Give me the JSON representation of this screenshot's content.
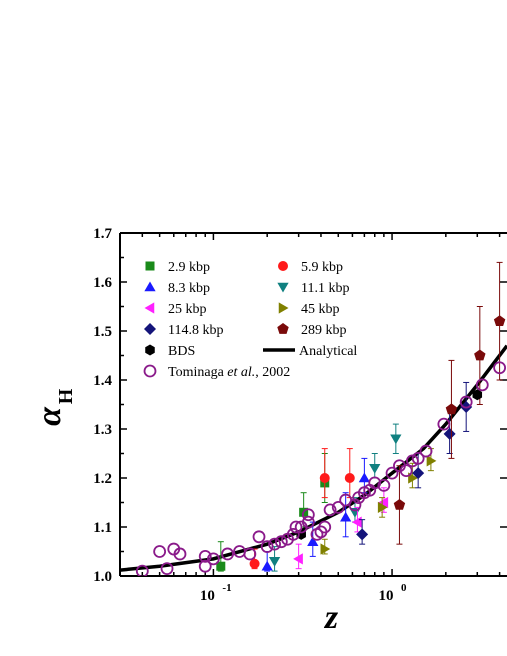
{
  "chart_data": {
    "type": "scatter",
    "title": "",
    "xlabel": "z",
    "ylabel": {
      "symbol": "α",
      "subscript": "H"
    },
    "x_scale": "log",
    "xlim": [
      0.03,
      4.4
    ],
    "ylim": [
      1.0,
      1.7
    ],
    "x_ticks": [
      {
        "value": 0.1,
        "base": "10",
        "exp": "-1"
      },
      {
        "value": 1,
        "base": "10",
        "exp": "0"
      }
    ],
    "y_ticks": [
      "1.0",
      "1.1",
      "1.2",
      "1.3",
      "1.4",
      "1.5",
      "1.6",
      "1.7"
    ],
    "y_tick_values": [
      1.0,
      1.1,
      1.2,
      1.3,
      1.4,
      1.5,
      1.6,
      1.7
    ],
    "legend_position": "top-left",
    "series": [
      {
        "name": "2.9 kbp",
        "marker": "square",
        "color": "#1a8a1a",
        "points": [
          [
            0.11,
            1.02,
            0.01,
            0.05
          ],
          [
            0.32,
            1.13,
            0.03,
            0.04
          ],
          [
            0.42,
            1.19,
            0.04,
            0.06
          ]
        ]
      },
      {
        "name": "5.9 kbp",
        "marker": "circle",
        "color": "#ff1a1a",
        "points": [
          [
            0.17,
            1.025,
            0.01,
            0.03
          ],
          [
            0.42,
            1.2,
            0.04,
            0.06
          ],
          [
            0.58,
            1.2,
            0.04,
            0.06
          ]
        ]
      },
      {
        "name": "8.3 kbp",
        "marker": "triangle-up",
        "color": "#1a1aff",
        "points": [
          [
            0.2,
            1.02,
            0.01,
            0.03
          ],
          [
            0.36,
            1.07,
            0.03,
            0.04
          ],
          [
            0.55,
            1.12,
            0.04,
            0.05
          ],
          [
            0.7,
            1.2,
            0.03,
            0.04
          ]
        ]
      },
      {
        "name": "11.1 kbp",
        "marker": "triangle-down",
        "color": "#108080",
        "points": [
          [
            0.22,
            1.03,
            0.02,
            0.03
          ],
          [
            0.62,
            1.13,
            0.02,
            0.03
          ],
          [
            0.8,
            1.22,
            0.02,
            0.03
          ],
          [
            1.05,
            1.28,
            0.03,
            0.03
          ]
        ]
      },
      {
        "name": "25 kbp",
        "marker": "triangle-left",
        "color": "#ff20ff",
        "points": [
          [
            0.3,
            1.035,
            0.02,
            0.03
          ],
          [
            0.64,
            1.11,
            0.02,
            0.03
          ],
          [
            0.9,
            1.15,
            0.02,
            0.03
          ]
        ]
      },
      {
        "name": "45 kbp",
        "marker": "triangle-right",
        "color": "#808000",
        "points": [
          [
            0.42,
            1.055,
            0.01,
            0.02
          ],
          [
            0.88,
            1.14,
            0.02,
            0.02
          ],
          [
            1.3,
            1.2,
            0.02,
            0.03
          ],
          [
            1.65,
            1.235,
            0.02,
            0.025
          ]
        ]
      },
      {
        "name": "114.8 kbp",
        "marker": "diamond",
        "color": "#14147a",
        "points": [
          [
            0.68,
            1.085,
            0.02,
            0.03
          ],
          [
            1.4,
            1.21,
            0.03,
            0.04
          ],
          [
            2.1,
            1.29,
            0.04,
            0.05
          ],
          [
            2.6,
            1.345,
            0.05,
            0.05
          ]
        ]
      },
      {
        "name": "289 kbp",
        "marker": "pentagon",
        "color": "#7a0a0a",
        "points": [
          [
            1.1,
            1.145,
            0.08,
            0.08
          ],
          [
            2.15,
            1.34,
            0.1,
            0.1
          ],
          [
            3.1,
            1.45,
            0.1,
            0.1
          ],
          [
            4.0,
            1.52,
            0.12,
            0.12
          ]
        ]
      },
      {
        "name": "BDS",
        "marker": "hexagon",
        "color": "#000000",
        "points": [
          [
            0.31,
            1.085
          ],
          [
            3.0,
            1.37
          ]
        ]
      },
      {
        "name": "Tominaga et al., 2002",
        "marker": "open-circle",
        "color": "#8a1a8a",
        "points": [
          [
            0.04,
            1.01
          ],
          [
            0.05,
            1.05
          ],
          [
            0.055,
            1.015
          ],
          [
            0.06,
            1.055
          ],
          [
            0.065,
            1.045
          ],
          [
            0.09,
            1.04
          ],
          [
            0.09,
            1.02
          ],
          [
            0.1,
            1.035
          ],
          [
            0.12,
            1.045
          ],
          [
            0.14,
            1.05
          ],
          [
            0.16,
            1.045
          ],
          [
            0.18,
            1.08
          ],
          [
            0.2,
            1.06
          ],
          [
            0.22,
            1.065
          ],
          [
            0.24,
            1.07
          ],
          [
            0.26,
            1.075
          ],
          [
            0.28,
            1.085
          ],
          [
            0.29,
            1.1
          ],
          [
            0.31,
            1.1
          ],
          [
            0.34,
            1.11
          ],
          [
            0.34,
            1.125
          ],
          [
            0.38,
            1.085
          ],
          [
            0.4,
            1.09
          ],
          [
            0.42,
            1.1
          ],
          [
            0.45,
            1.135
          ],
          [
            0.5,
            1.14
          ],
          [
            0.55,
            1.155
          ],
          [
            0.62,
            1.145
          ],
          [
            0.65,
            1.16
          ],
          [
            0.7,
            1.17
          ],
          [
            0.75,
            1.175
          ],
          [
            0.8,
            1.19
          ],
          [
            0.9,
            1.185
          ],
          [
            1.0,
            1.21
          ],
          [
            1.1,
            1.225
          ],
          [
            1.2,
            1.215
          ],
          [
            1.3,
            1.235
          ],
          [
            1.4,
            1.24
          ],
          [
            1.55,
            1.255
          ],
          [
            1.95,
            1.31
          ],
          [
            2.6,
            1.355
          ],
          [
            3.2,
            1.39
          ],
          [
            4.0,
            1.425
          ]
        ]
      }
    ],
    "line_series": [
      {
        "name": "Analytical",
        "color": "#000000",
        "points": [
          [
            0.03,
            1.012
          ],
          [
            0.05,
            1.02
          ],
          [
            0.1,
            1.035
          ],
          [
            0.2,
            1.065
          ],
          [
            0.3,
            1.09
          ],
          [
            0.5,
            1.13
          ],
          [
            0.7,
            1.165
          ],
          [
            1.0,
            1.21
          ],
          [
            1.5,
            1.26
          ],
          [
            2.0,
            1.31
          ],
          [
            3.0,
            1.39
          ],
          [
            4.4,
            1.47
          ]
        ]
      }
    ]
  }
}
